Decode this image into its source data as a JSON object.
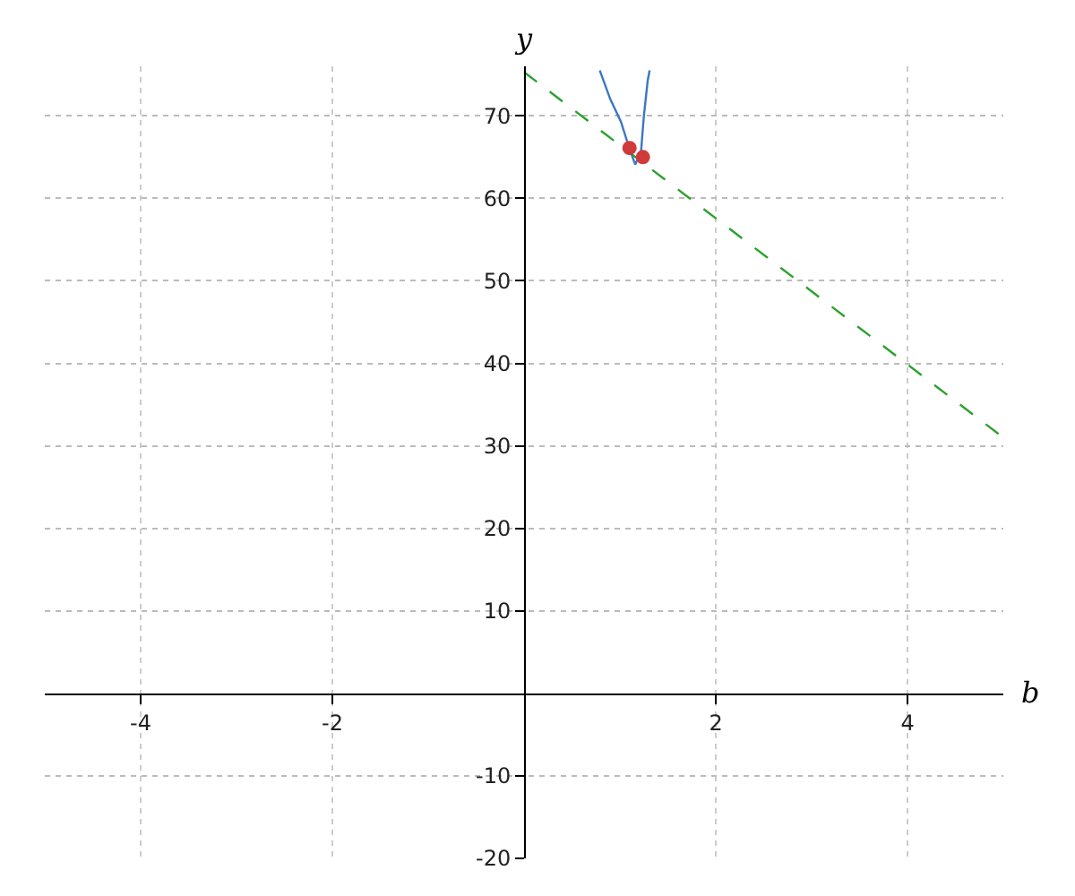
{
  "chart_data": {
    "type": "line",
    "xlabel": "b",
    "ylabel": "y",
    "xlim": [
      -5,
      5
    ],
    "ylim": [
      -20,
      76
    ],
    "xticks": [
      -4,
      -2,
      2,
      4
    ],
    "yticks": [
      -20,
      -10,
      10,
      20,
      30,
      40,
      50,
      60,
      70
    ],
    "grid": true,
    "series": [
      {
        "color": "#3a78c3",
        "x": [
          0.79,
          0.9,
          1.01,
          1.1,
          1.16,
          1.22,
          1.25,
          1.29,
          1.31
        ],
        "values": [
          75.5,
          72,
          69.3,
          66,
          64.1,
          65.6,
          70,
          74.3,
          75.5
        ]
      },
      {
        "color": "#2ca02c",
        "line_style": "dashed",
        "x": [
          0,
          5
        ],
        "values": [
          75.3,
          31
        ]
      },
      {
        "type": "scatter",
        "color": "#d03a3a",
        "marker": "circle",
        "x": [
          1.1,
          1.24
        ],
        "values": [
          66.1,
          65
        ]
      }
    ]
  }
}
